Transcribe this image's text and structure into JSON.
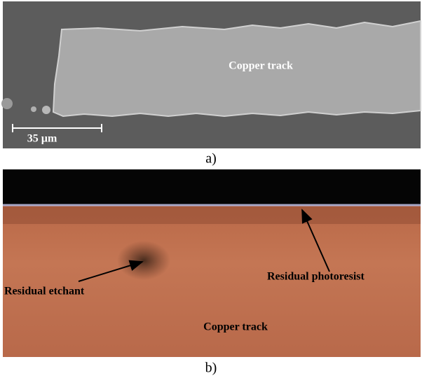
{
  "panels": [
    {
      "caption": "a)",
      "labels": [
        "Copper track",
        "35 µm"
      ]
    },
    {
      "caption": "b)",
      "labels": [
        "Residual etchant",
        "Residual photoresist",
        "Copper track"
      ]
    }
  ]
}
